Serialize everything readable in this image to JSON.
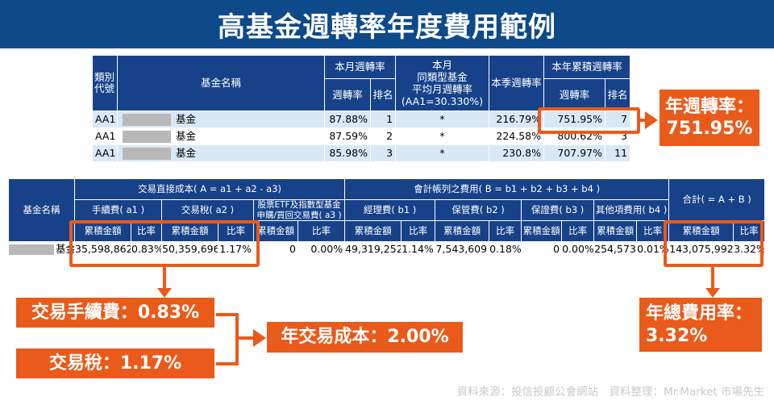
{
  "title": "高基金週轉率年度費用範例",
  "table1": {
    "col_code": "類別代號",
    "col_name": "基金名稱",
    "col_month": "本月週轉率",
    "col_peer_1": "本月",
    "col_peer_2": "同類型基金",
    "col_peer_3": "平均月週轉率",
    "col_peer_4": "(AA1=30.330%)",
    "col_quarter": "本季週轉率",
    "col_ytd": "本年累積週轉率",
    "sub_rate": "週轉率",
    "sub_rank": "排名",
    "sub_rate2": "週轉率",
    "sub_rank2": "排名",
    "rows": [
      {
        "code": "AA1",
        "name": "基金",
        "month_rate": "87.88%",
        "month_rank": "1",
        "peer": "*",
        "quarter": "216.79%",
        "ytd_rate": "751.95%",
        "ytd_rank": "7"
      },
      {
        "code": "AA1",
        "name": "基金",
        "month_rate": "87.59%",
        "month_rank": "2",
        "peer": "*",
        "quarter": "224.58%",
        "ytd_rate": "800.62%",
        "ytd_rank": "3"
      },
      {
        "code": "AA1",
        "name": "基金",
        "month_rate": "85.98%",
        "month_rank": "3",
        "peer": "*",
        "quarter": "230.8%",
        "ytd_rate": "707.97%",
        "ytd_rank": "11"
      }
    ]
  },
  "table2": {
    "col_name": "基金名稱",
    "col_direct": "交易直接成本( A = a1 + a2 - a3)",
    "col_account": "會計帳列之費用( B = b1 + b2 + b3 + b4 )",
    "col_total": "合計( = A + B )",
    "a1": "手續費( a1 )",
    "a2": "交易稅( a2 )",
    "a3_1": "股票ETF及指數型基金",
    "a3_2": "申購/買回交易費( a3 )",
    "b1": "經理費( b1 )",
    "b2": "保管費( b2 )",
    "b3": "保證費( b3 )",
    "b4": "其他項費用( b4 )",
    "amt": "累積金額",
    "ratio": "比率",
    "row": {
      "name": "基金",
      "a1_amt": "35,598,862",
      "a1_ratio": "0.83%",
      "a2_amt": "50,359,696",
      "a2_ratio": "1.17%",
      "a3_amt": "0",
      "a3_ratio": "0.00%",
      "b1_amt": "49,319,252",
      "b1_ratio": "1.14%",
      "b2_amt": "7,543,609",
      "b2_ratio": "0.18%",
      "b3_amt": "0",
      "b3_ratio": "0.00%",
      "b4_amt": "254,573",
      "b4_ratio": "0.01%",
      "total_amt": "143,075,992",
      "total_ratio": "3.32%"
    }
  },
  "labels": {
    "annual_turnover_1": "年週轉率：",
    "annual_turnover_2": "751.95%",
    "fee": "交易手續費：0.83%",
    "tax": "交易稅：1.17%",
    "annual_cost": "年交易成本：2.00%",
    "total_rate_1": "年總費用率：",
    "total_rate_2": "3.32%"
  },
  "source": "資料來源：投信投顧公會網站　資料整理：Mr.Market 市場先生",
  "colors": {
    "header_blue": "#17428a",
    "banner_blue": "#0e4a8a",
    "accent_orange": "#ea5a1a",
    "row_light": "#d9e8f6"
  }
}
